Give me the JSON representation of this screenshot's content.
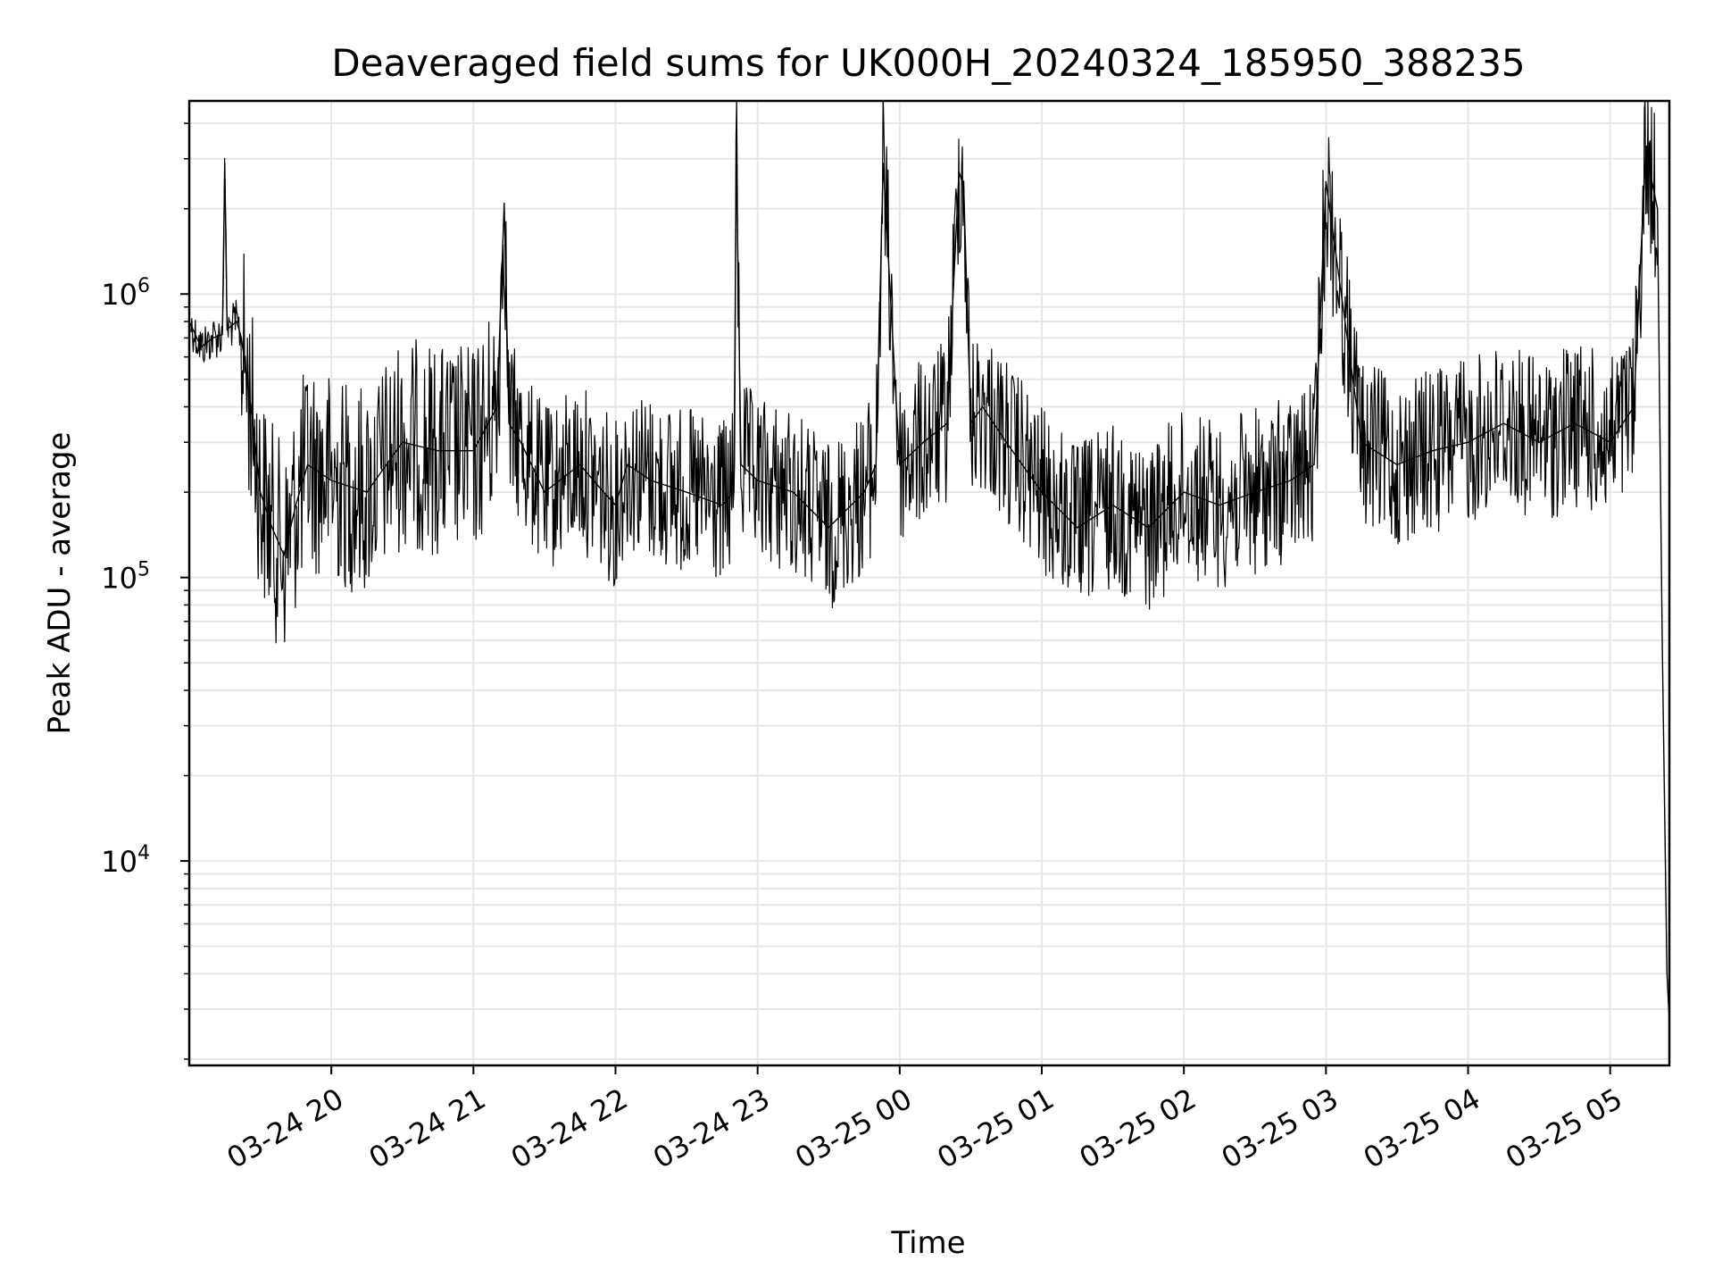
{
  "chart_data": {
    "type": "line",
    "title": "Deaveraged field sums for UK000H_20240324_185950_388235",
    "xlabel": "Time",
    "ylabel": "Peak ADU - average",
    "yscale": "log",
    "grid": true,
    "line_color": "#000000",
    "grid_color": "#e6e6e6",
    "xlim": [
      "2024-03-24 19:00",
      "2024-03-25 05:25"
    ],
    "ylim": [
      1900,
      4800000
    ],
    "x_ticks": [
      {
        "label": "03-24 20",
        "time": "2024-03-24 20:00"
      },
      {
        "label": "03-24 21",
        "time": "2024-03-24 21:00"
      },
      {
        "label": "03-24 22",
        "time": "2024-03-24 22:00"
      },
      {
        "label": "03-24 23",
        "time": "2024-03-24 23:00"
      },
      {
        "label": "03-25 00",
        "time": "2024-03-25 00:00"
      },
      {
        "label": "03-25 01",
        "time": "2024-03-25 01:00"
      },
      {
        "label": "03-25 02",
        "time": "2024-03-25 02:00"
      },
      {
        "label": "03-25 03",
        "time": "2024-03-25 03:00"
      },
      {
        "label": "03-25 04",
        "time": "2024-03-25 04:00"
      },
      {
        "label": "03-25 05",
        "time": "2024-03-25 05:00"
      }
    ],
    "y_ticks": [
      {
        "base": "10",
        "exp": "4",
        "value": 10000
      },
      {
        "base": "10",
        "exp": "5",
        "value": 100000
      },
      {
        "base": "10",
        "exp": "6",
        "value": 1000000
      }
    ],
    "series": [
      {
        "x": [
          "2024-03-24 19:00",
          "2024-03-24 19:05",
          "2024-03-24 19:10",
          "2024-03-24 19:14",
          "2024-03-24 19:15",
          "2024-03-24 19:16",
          "2024-03-24 19:20",
          "2024-03-24 19:22",
          "2024-03-24 19:26",
          "2024-03-24 19:30",
          "2024-03-24 19:35",
          "2024-03-24 19:40",
          "2024-03-24 19:45",
          "2024-03-24 19:50",
          "2024-03-24 20:00",
          "2024-03-24 20:15",
          "2024-03-24 20:30",
          "2024-03-24 20:45",
          "2024-03-24 21:00",
          "2024-03-24 21:10",
          "2024-03-24 21:13",
          "2024-03-24 21:15",
          "2024-03-24 21:20",
          "2024-03-24 21:30",
          "2024-03-24 21:45",
          "2024-03-24 21:55",
          "2024-03-24 22:00",
          "2024-03-24 22:05",
          "2024-03-24 22:15",
          "2024-03-24 22:30",
          "2024-03-24 22:45",
          "2024-03-24 22:50",
          "2024-03-24 22:51",
          "2024-03-24 22:53",
          "2024-03-24 23:00",
          "2024-03-24 23:15",
          "2024-03-24 23:30",
          "2024-03-24 23:45",
          "2024-03-24 23:50",
          "2024-03-24 23:53",
          "2024-03-25 00:00",
          "2024-03-25 00:10",
          "2024-03-25 00:20",
          "2024-03-25 00:25",
          "2024-03-25 00:27",
          "2024-03-25 00:30",
          "2024-03-25 00:35",
          "2024-03-25 00:45",
          "2024-03-25 01:00",
          "2024-03-25 01:15",
          "2024-03-25 01:30",
          "2024-03-25 01:45",
          "2024-03-25 02:00",
          "2024-03-25 02:15",
          "2024-03-25 02:30",
          "2024-03-25 02:45",
          "2024-03-25 02:55",
          "2024-03-25 03:00",
          "2024-03-25 03:15",
          "2024-03-25 03:30",
          "2024-03-25 03:45",
          "2024-03-25 04:00",
          "2024-03-25 04:15",
          "2024-03-25 04:30",
          "2024-03-25 04:45",
          "2024-03-25 05:00",
          "2024-03-25 05:10",
          "2024-03-25 05:15",
          "2024-03-25 05:20",
          "2024-03-25 05:22",
          "2024-03-25 05:24",
          "2024-03-25 05:25"
        ],
        "y": [
          800000,
          650000,
          700000,
          720000,
          2900000,
          750000,
          800000,
          700000,
          400000,
          200000,
          150000,
          120000,
          180000,
          250000,
          220000,
          200000,
          300000,
          280000,
          280000,
          400000,
          2100000,
          350000,
          300000,
          200000,
          250000,
          200000,
          180000,
          250000,
          220000,
          200000,
          180000,
          200000,
          3200000,
          250000,
          220000,
          200000,
          150000,
          200000,
          250000,
          2900000,
          250000,
          300000,
          350000,
          2700000,
          2400000,
          350000,
          400000,
          300000,
          200000,
          150000,
          180000,
          150000,
          200000,
          180000,
          200000,
          220000,
          250000,
          2500000,
          300000,
          250000,
          280000,
          300000,
          350000,
          300000,
          350000,
          300000,
          400000,
          3200000,
          2000000,
          60000,
          4000,
          2700
        ]
      }
    ]
  }
}
